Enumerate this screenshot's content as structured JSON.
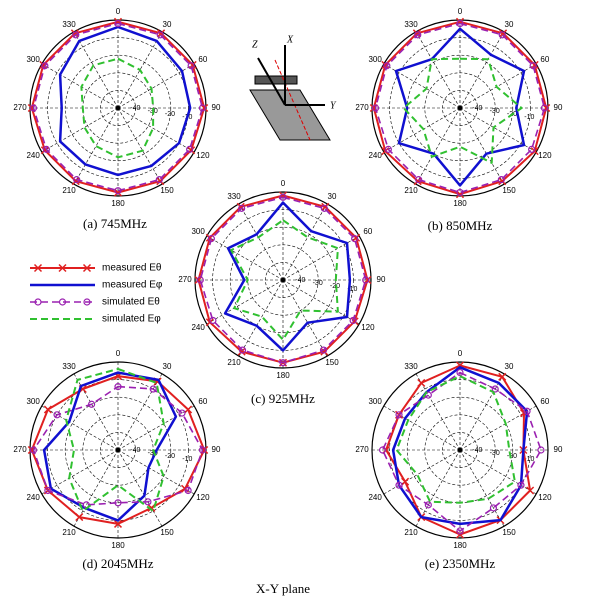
{
  "legend": [
    {
      "name": "measured Eθ",
      "color": "#e02020"
    },
    {
      "name": "measured Eφ",
      "color": "#1010d0"
    },
    {
      "name": "simulated Eθ",
      "color": "#9a20b0"
    },
    {
      "name": "simulated Eφ",
      "color": "#30c030"
    }
  ],
  "inset": {
    "labels": [
      "Z",
      "X",
      "Y"
    ]
  },
  "footer": "X-Y plane",
  "chart_data": [
    {
      "type": "polar",
      "caption": "(a) 745MHz",
      "angles": [
        0,
        30,
        60,
        90,
        120,
        150,
        180,
        210,
        240,
        270,
        300,
        330
      ],
      "rlim": [
        -50,
        0
      ],
      "rticks": [
        -40,
        -30,
        -20,
        -10
      ],
      "series": [
        {
          "values": [
            -1,
            -1,
            -1,
            -1,
            -2,
            -2,
            -2,
            -2,
            -2,
            -1,
            -1,
            -1
          ]
        },
        {
          "values": [
            -4,
            -6,
            -8,
            -9,
            -10,
            -12,
            -12,
            -13,
            -12,
            -18,
            -12,
            -6
          ]
        },
        {
          "values": [
            -2,
            -2,
            -2,
            -2,
            -3,
            -3,
            -3,
            -3,
            -3,
            -2,
            -2,
            -2
          ]
        },
        {
          "values": [
            -22,
            -25,
            -28,
            -30,
            -27,
            -22,
            -22,
            -25,
            -28,
            -30,
            -26,
            -22
          ]
        }
      ]
    },
    {
      "type": "polar",
      "caption": "(b) 850MHz",
      "angles": [
        0,
        30,
        60,
        90,
        120,
        150,
        180,
        210,
        240,
        270,
        300,
        330
      ],
      "rlim": [
        -50,
        0
      ],
      "rticks": [
        -40,
        -30,
        -20,
        -10
      ],
      "series": [
        {
          "values": [
            -1,
            -1,
            -1,
            -1,
            -1,
            -2,
            -1,
            -2,
            -1,
            -1,
            -1,
            -1
          ]
        },
        {
          "values": [
            -5,
            -15,
            -8,
            -18,
            -8,
            -20,
            -6,
            -20,
            -10,
            -20,
            -8,
            -18
          ]
        },
        {
          "values": [
            -2,
            -2,
            -2,
            -2,
            -3,
            -3,
            -2,
            -3,
            -3,
            -2,
            -2,
            -2
          ]
        },
        {
          "values": [
            -22,
            -18,
            -26,
            -15,
            -28,
            -14,
            -28,
            -18,
            -26,
            -18,
            -28,
            -18
          ]
        }
      ]
    },
    {
      "type": "polar",
      "caption": "(c) 925MHz",
      "angles": [
        0,
        30,
        60,
        90,
        120,
        150,
        180,
        210,
        240,
        270,
        300,
        330
      ],
      "rlim": [
        -50,
        0
      ],
      "rticks": [
        -40,
        -30,
        -20,
        -10
      ],
      "series": [
        {
          "values": [
            -2,
            -2,
            -2,
            -2,
            -3,
            -3,
            -3,
            -3,
            -2,
            -2,
            -2,
            -2
          ]
        },
        {
          "values": [
            -6,
            -18,
            -8,
            -12,
            -8,
            -22,
            -10,
            -20,
            -12,
            -28,
            -14,
            -20
          ]
        },
        {
          "values": [
            -3,
            -3,
            -3,
            -3,
            -4,
            -4,
            -3,
            -4,
            -4,
            -3,
            -3,
            -3
          ]
        },
        {
          "values": [
            -16,
            -22,
            -14,
            -20,
            -14,
            -30,
            -16,
            -26,
            -18,
            -30,
            -16,
            -22
          ]
        }
      ]
    },
    {
      "type": "polar",
      "caption": "(d) 2045MHz",
      "angles": [
        0,
        30,
        60,
        90,
        120,
        150,
        180,
        210,
        240,
        270,
        300,
        330
      ],
      "rlim": [
        -50,
        0
      ],
      "rticks": [
        -40,
        -30,
        -20,
        -10
      ],
      "series": [
        {
          "values": [
            -8,
            -5,
            -4,
            -1,
            -6,
            -12,
            -8,
            -6,
            -4,
            -1,
            -4,
            -10
          ]
        },
        {
          "values": [
            -6,
            -4,
            -12,
            -28,
            -30,
            -20,
            -10,
            -12,
            -6,
            -8,
            -18,
            -8
          ]
        },
        {
          "values": [
            -14,
            -10,
            -8,
            -2,
            -4,
            -16,
            -20,
            -14,
            -4,
            -2,
            -10,
            -20
          ]
        },
        {
          "values": [
            -4,
            -6,
            -20,
            -30,
            -20,
            -10,
            -30,
            -10,
            -18,
            -25,
            -16,
            -4
          ]
        }
      ]
    },
    {
      "type": "polar",
      "caption": "(e) 2350MHz",
      "angles": [
        0,
        30,
        60,
        90,
        120,
        150,
        180,
        210,
        240,
        270,
        300,
        330
      ],
      "rlim": [
        -50,
        0
      ],
      "rticks": [
        -40,
        -30,
        -20,
        -10
      ],
      "series": [
        {
          "values": [
            -2,
            -2,
            -8,
            -14,
            -4,
            -4,
            -2,
            -6,
            -14,
            -8,
            -10,
            -6
          ]
        },
        {
          "values": [
            -3,
            -6,
            -6,
            -14,
            -10,
            -4,
            -8,
            -6,
            -10,
            -12,
            -14,
            -12
          ]
        },
        {
          "values": [
            -6,
            -10,
            -6,
            -4,
            -10,
            -12,
            -4,
            -14,
            -10,
            -6,
            -10,
            -14
          ]
        },
        {
          "values": [
            -8,
            -12,
            -20,
            -22,
            -14,
            -18,
            -20,
            -16,
            -22,
            -14,
            -16,
            -12
          ]
        }
      ]
    }
  ]
}
